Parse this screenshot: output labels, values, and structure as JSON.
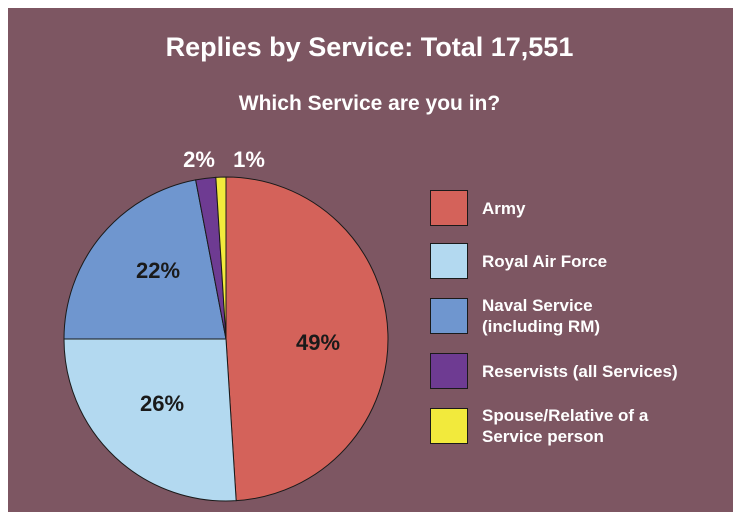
{
  "chart_data": {
    "type": "pie",
    "title": "Replies by Service: Total 17,551",
    "subtitle": "Which Service are you in?",
    "start_angle_deg": 0,
    "direction": "clockwise",
    "legend_position": "right",
    "slices": [
      {
        "label": "Army",
        "label_lines": [
          "Army"
        ],
        "value": 49,
        "display": "49%",
        "color": "#d4625a"
      },
      {
        "label": "Royal Air Force",
        "label_lines": [
          "Royal Air Force"
        ],
        "value": 26,
        "display": "26%",
        "color": "#b3d9f0"
      },
      {
        "label": "Naval Service (including RM)",
        "label_lines": [
          "Naval Service",
          "(including RM)"
        ],
        "value": 22,
        "display": "22%",
        "color": "#6f96cf"
      },
      {
        "label": "Reservists (all Services)",
        "label_lines": [
          "Reservists (all Services)"
        ],
        "value": 2,
        "display": "2%",
        "color": "#6e3b92"
      },
      {
        "label": "Spouse/Relative of a Service person",
        "label_lines": [
          "Spouse/Relative of a",
          "Service person"
        ],
        "value": 1,
        "display": "1%",
        "color": "#f2ea3c"
      }
    ]
  }
}
